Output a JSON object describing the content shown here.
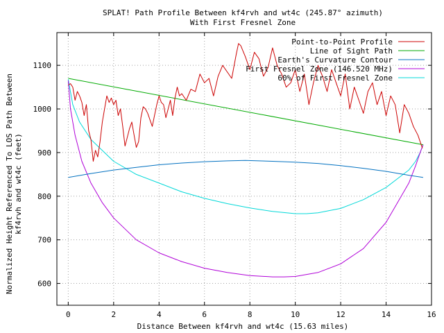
{
  "colors": {
    "profile": "#cc0000",
    "los": "#00aa00",
    "curvature": "#0070c0",
    "fresnel": "#b000d8",
    "fresnel60": "#00d8d8",
    "grid": "#a0a0a0",
    "text": "#000000"
  },
  "chart_data": {
    "type": "line",
    "title": "SPLAT! Path Profile Between kf4rvh and wt4c (245.87° azimuth)",
    "subtitle": "With First Fresnel Zone",
    "xlabel": "Distance Between kf4rvh and wt4c (15.63 miles)",
    "ylabel_line1": "Normalized Height Referenced To LOS Path Between",
    "ylabel_line2": "kf4rvh and wt4c (feet)",
    "xlim": [
      -0.5,
      16
    ],
    "ylim": [
      550,
      1175
    ],
    "x_ticks": [
      0,
      2,
      4,
      6,
      8,
      10,
      12,
      14,
      16
    ],
    "x_tick_labels": [
      "0",
      "2",
      "4",
      "6",
      "8",
      "10",
      "12",
      "14",
      "16"
    ],
    "y_ticks": [
      600,
      700,
      800,
      900,
      1000,
      1100
    ],
    "y_tick_labels": [
      "600",
      "700",
      "800",
      "900",
      "1000",
      "1100"
    ],
    "grid": true,
    "legend_position": "top-right",
    "series": [
      {
        "name": "Point-to-Point Profile",
        "color": "#cc0000",
        "x": [
          0,
          0.1,
          0.2,
          0.3,
          0.4,
          0.5,
          0.6,
          0.7,
          0.8,
          0.9,
          1.0,
          1.1,
          1.2,
          1.3,
          1.4,
          1.5,
          1.6,
          1.7,
          1.8,
          1.9,
          2.0,
          2.1,
          2.2,
          2.3,
          2.4,
          2.5,
          2.6,
          2.7,
          2.8,
          2.9,
          3.0,
          3.1,
          3.2,
          3.3,
          3.4,
          3.5,
          3.6,
          3.7,
          3.8,
          3.9,
          4.0,
          4.1,
          4.2,
          4.3,
          4.4,
          4.5,
          4.6,
          4.7,
          4.8,
          4.9,
          5.0,
          5.2,
          5.4,
          5.6,
          5.8,
          6.0,
          6.2,
          6.4,
          6.6,
          6.8,
          7.0,
          7.2,
          7.4,
          7.5,
          7.6,
          7.8,
          8.0,
          8.2,
          8.4,
          8.6,
          8.8,
          9.0,
          9.2,
          9.4,
          9.6,
          9.8,
          10.0,
          10.2,
          10.4,
          10.6,
          10.8,
          11.0,
          11.2,
          11.4,
          11.6,
          11.8,
          12.0,
          12.2,
          12.4,
          12.6,
          12.8,
          13.0,
          13.2,
          13.4,
          13.6,
          13.8,
          14.0,
          14.2,
          14.4,
          14.6,
          14.8,
          15.0,
          15.2,
          15.4,
          15.5,
          15.6
        ],
        "values": [
          1055,
          1058,
          1050,
          1020,
          1040,
          1030,
          1015,
          985,
          1010,
          950,
          930,
          880,
          905,
          890,
          925,
          970,
          1000,
          1030,
          1015,
          1025,
          1010,
          1020,
          985,
          1000,
          960,
          915,
          935,
          955,
          970,
          940,
          912,
          925,
          980,
          1005,
          1000,
          990,
          975,
          960,
          985,
          1010,
          1030,
          1015,
          1010,
          980,
          1000,
          1020,
          985,
          1025,
          1050,
          1030,
          1035,
          1020,
          1045,
          1040,
          1080,
          1060,
          1070,
          1030,
          1075,
          1100,
          1085,
          1070,
          1125,
          1150,
          1145,
          1120,
          1090,
          1130,
          1115,
          1075,
          1095,
          1140,
          1100,
          1080,
          1050,
          1060,
          1090,
          1040,
          1080,
          1010,
          1060,
          1100,
          1075,
          1040,
          1090,
          1060,
          1030,
          1080,
          1000,
          1050,
          1020,
          990,
          1040,
          1060,
          1010,
          1040,
          985,
          1030,
          1010,
          945,
          1010,
          990,
          960,
          940,
          925,
          910
        ]
      },
      {
        "name": "Line of Sight Path",
        "color": "#00aa00",
        "x": [
          0,
          15.63
        ],
        "values": [
          1070,
          918
        ]
      },
      {
        "name": "Earth's Curvature Contour",
        "color": "#0070c0",
        "x": [
          0,
          1,
          2,
          3,
          4,
          5,
          6,
          7,
          7.8,
          9,
          10,
          11,
          12,
          13,
          14,
          15,
          15.63
        ],
        "values": [
          843,
          852,
          860,
          866,
          872,
          876,
          879,
          881,
          882,
          880,
          878,
          875,
          870,
          864,
          857,
          848,
          843
        ]
      },
      {
        "name": "First Fresnel Zone (146.520 MHz)",
        "color": "#b000d8",
        "x": [
          0,
          0.1,
          0.3,
          0.6,
          1,
          1.5,
          2,
          3,
          4,
          5,
          6,
          7,
          8,
          9,
          9.5,
          10,
          11,
          12,
          13,
          14,
          14.5,
          15,
          15.3,
          15.5,
          15.63
        ],
        "values": [
          1065,
          1000,
          940,
          880,
          830,
          785,
          750,
          700,
          670,
          650,
          635,
          625,
          618,
          615,
          615,
          616,
          625,
          645,
          680,
          740,
          785,
          830,
          870,
          900,
          918
        ]
      },
      {
        "name": "60% of First Fresnel Zone",
        "color": "#00d8d8",
        "x": [
          0,
          0.2,
          0.5,
          1,
          2,
          3,
          4,
          5,
          6,
          7,
          8,
          9,
          10,
          10.5,
          11,
          12,
          13,
          14,
          14.5,
          15,
          15.3,
          15.5,
          15.63
        ],
        "values": [
          1068,
          1010,
          970,
          930,
          880,
          850,
          830,
          810,
          795,
          783,
          773,
          765,
          760,
          760,
          762,
          772,
          792,
          820,
          840,
          860,
          880,
          900,
          918
        ]
      }
    ]
  }
}
